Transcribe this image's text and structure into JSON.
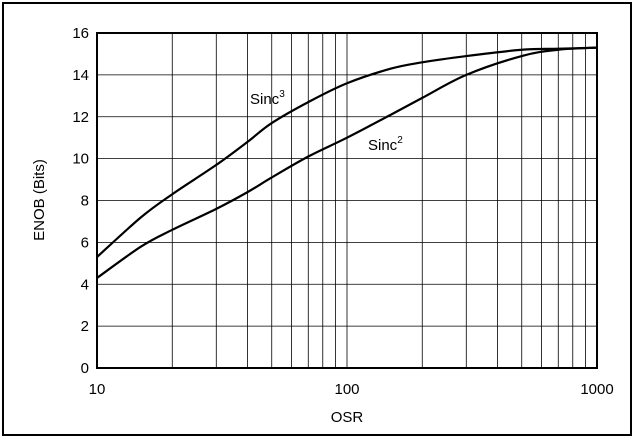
{
  "chart_data": {
    "type": "line",
    "xlabel": "OSR",
    "ylabel": "ENOB (Bits)",
    "xscale": "log",
    "xlim": [
      10,
      1000
    ],
    "ylim": [
      0,
      16
    ],
    "x_ticks": [
      10,
      100,
      1000
    ],
    "x_tick_labels": [
      "10",
      "100",
      "1000"
    ],
    "y_ticks": [
      0,
      2,
      4,
      6,
      8,
      10,
      12,
      14,
      16
    ],
    "y_tick_labels": [
      "0",
      "2",
      "4",
      "6",
      "8",
      "10",
      "12",
      "14",
      "16"
    ],
    "grid": true,
    "series": [
      {
        "name": "Sinc³",
        "label_base": "Sinc",
        "label_sup": "3",
        "x": [
          10,
          15,
          20,
          30,
          40,
          50,
          70,
          100,
          150,
          200,
          300,
          500,
          700,
          1000
        ],
        "y": [
          5.3,
          7.2,
          8.3,
          9.7,
          10.8,
          11.7,
          12.7,
          13.6,
          14.3,
          14.6,
          14.9,
          15.2,
          15.25,
          15.3
        ]
      },
      {
        "name": "Sinc²",
        "label_base": "Sinc",
        "label_sup": "2",
        "x": [
          10,
          15,
          20,
          30,
          40,
          50,
          70,
          100,
          150,
          200,
          300,
          500,
          700,
          1000
        ],
        "y": [
          4.3,
          5.8,
          6.6,
          7.6,
          8.4,
          9.1,
          10.1,
          11.0,
          12.1,
          12.9,
          14.0,
          14.9,
          15.2,
          15.3
        ]
      }
    ]
  }
}
